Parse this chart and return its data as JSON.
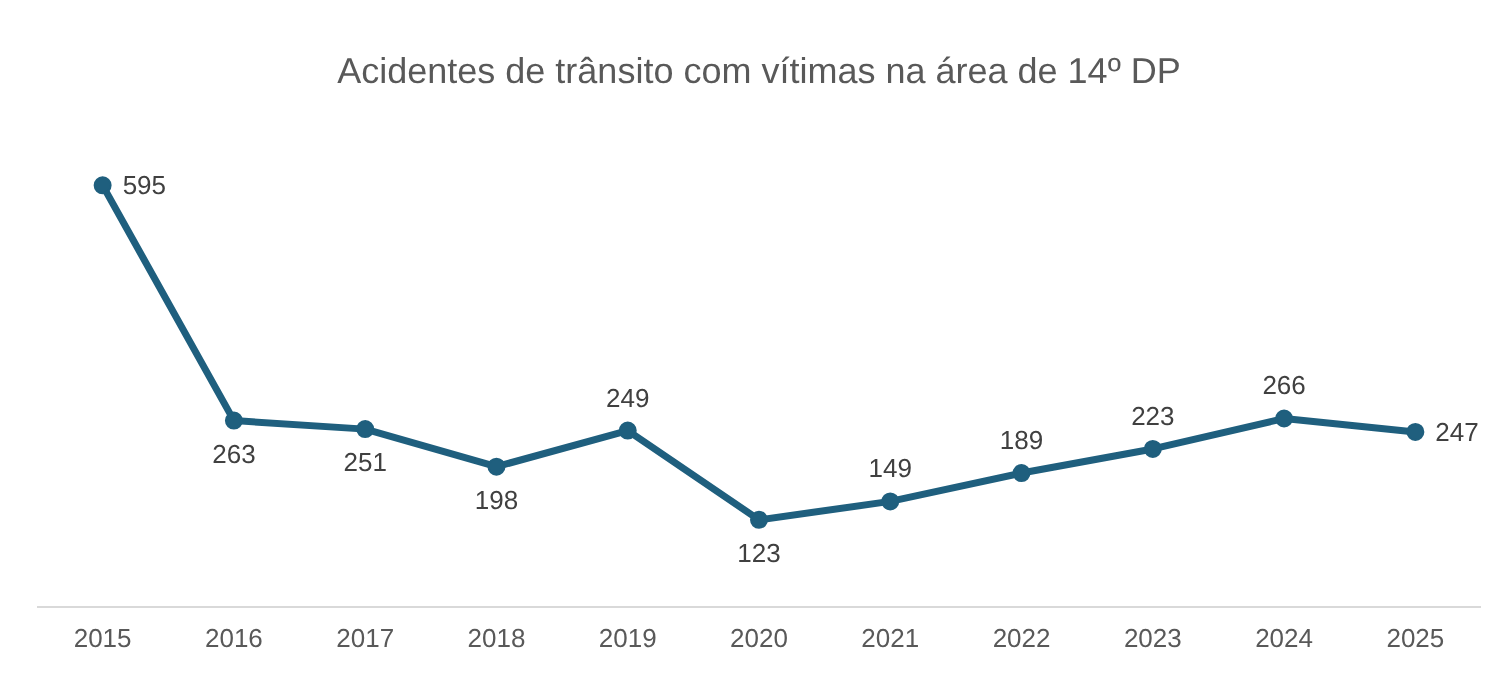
{
  "chart_data": {
    "type": "line",
    "title": "Acidentes de trânsito com vítimas na área de 14º DP",
    "categories": [
      "2015",
      "2016",
      "2017",
      "2018",
      "2019",
      "2020",
      "2021",
      "2022",
      "2023",
      "2024",
      "2025"
    ],
    "series": [
      {
        "color": "#1f5f7e",
        "values": [
          595,
          263,
          251,
          198,
          249,
          123,
          149,
          189,
          223,
          266,
          247
        ]
      }
    ],
    "data_labels": true,
    "marker": "circle",
    "grid": false
  }
}
